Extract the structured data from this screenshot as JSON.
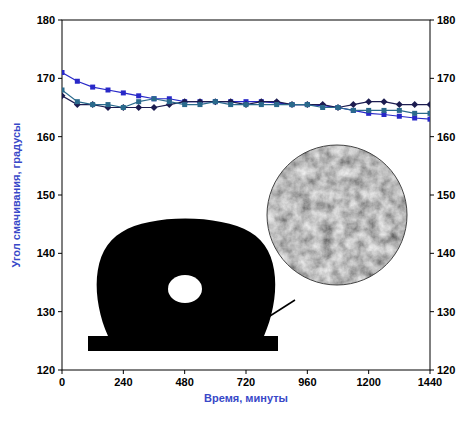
{
  "chart_data": {
    "type": "line",
    "x_label": "Время, минуты",
    "y_label": "Угол смачивания, градусы",
    "x": [
      0,
      60,
      120,
      180,
      240,
      300,
      360,
      420,
      480,
      540,
      600,
      660,
      720,
      780,
      840,
      900,
      960,
      1020,
      1080,
      1140,
      1200,
      1260,
      1320,
      1380,
      1440
    ],
    "series": [
      {
        "color": "#2828c8",
        "marker": "square",
        "line_style": "solid",
        "values": [
          171,
          169.5,
          168.5,
          168,
          167.5,
          167,
          166.5,
          166.5,
          166,
          166,
          166,
          166,
          166,
          166,
          165.8,
          165.5,
          165.5,
          165.3,
          165,
          164.5,
          164,
          163.8,
          163.5,
          163.2,
          163
        ]
      },
      {
        "color": "#1c1c50",
        "marker": "diamond",
        "line_style": "solid",
        "values": [
          167,
          165.5,
          165.5,
          165,
          165,
          165,
          165,
          165.5,
          166,
          166,
          166,
          166,
          165.5,
          166,
          166,
          165.5,
          165.5,
          165.5,
          165,
          165.5,
          166,
          166,
          165.5,
          165.5,
          165.5
        ]
      },
      {
        "color": "#2a6a8c",
        "marker": "square",
        "line_style": "solid",
        "values": [
          168,
          166,
          165.5,
          165.5,
          165,
          166,
          166.5,
          166,
          165.5,
          165.5,
          166,
          165.5,
          165.5,
          165.5,
          165.5,
          165.5,
          165.5,
          165,
          165,
          164.5,
          164.5,
          164.5,
          164.5,
          164,
          164
        ]
      }
    ],
    "xlim": [
      0,
      1440
    ],
    "xticks": [
      0,
      240,
      480,
      720,
      960,
      1200,
      1440
    ],
    "ylim": [
      120,
      180
    ],
    "yticks": [
      120,
      130,
      140,
      150,
      160,
      170,
      180
    ],
    "y2lim": [
      120,
      180
    ],
    "y2ticks": [
      120,
      130,
      140,
      150,
      160,
      170,
      180
    ],
    "grid": false
  }
}
